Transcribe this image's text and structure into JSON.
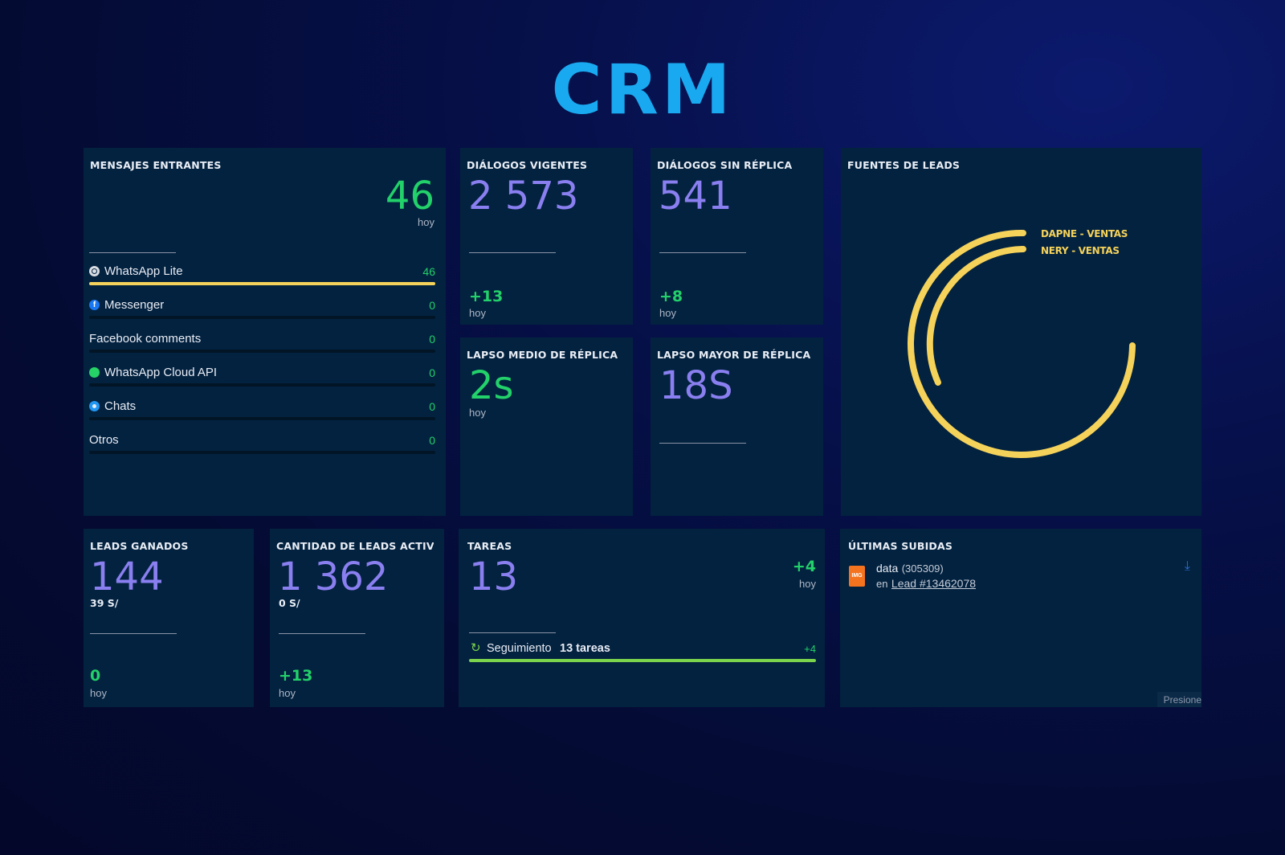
{
  "page": {
    "title": "CRM"
  },
  "incoming": {
    "title": "MENSAJES ENTRANTES",
    "value": "46",
    "value_caption": "hoy",
    "channels": [
      {
        "label": "WhatsApp Lite",
        "value": "46",
        "icon": "whatsapp-lite-icon",
        "share": 1.0
      },
      {
        "label": "Messenger",
        "value": "0",
        "icon": "messenger-icon",
        "share": 0
      },
      {
        "label": "Facebook comments",
        "value": "0",
        "icon": "",
        "share": 0
      },
      {
        "label": "WhatsApp Cloud API",
        "value": "0",
        "icon": "whatsapp-cloud-icon",
        "share": 0
      },
      {
        "label": "Chats",
        "value": "0",
        "icon": "chats-icon",
        "share": 0
      },
      {
        "label": "Otros",
        "value": "0",
        "icon": "",
        "share": 0
      }
    ]
  },
  "dialogs_active": {
    "title": "DIÁLOGOS VIGENTES",
    "value": "2 573",
    "delta": "+13",
    "delta_caption": "hoy"
  },
  "dialogs_no_reply": {
    "title": "DIÁLOGOS SIN RÉPLICA",
    "value": "541",
    "delta": "+8",
    "delta_caption": "hoy"
  },
  "avg_reply": {
    "title": "LAPSO MEDIO DE RÉPLICA",
    "value": "2s",
    "caption": "hoy"
  },
  "max_reply": {
    "title": "LAPSO MAYOR DE RÉPLICA",
    "value": "18S"
  },
  "lead_sources": {
    "title": "FUENTES DE LEADS",
    "legend": [
      "DAPNE - VENTAS",
      "NERY - VENTAS"
    ],
    "color": "#f5d25a"
  },
  "leads_won": {
    "title": "LEADS GANADOS",
    "value": "144",
    "sub": "39 S/",
    "delta": "0",
    "delta_caption": "hoy"
  },
  "leads_active": {
    "title": "CANTIDAD DE LEADS ACTIVOS",
    "value": "1 362",
    "sub": "0 S/",
    "delta": "+13",
    "delta_caption": "hoy"
  },
  "tasks": {
    "title": "TAREAS",
    "value": "13",
    "delta": "+4",
    "delta_caption": "hoy",
    "follow_label": "Seguimiento",
    "follow_count": "13 tareas",
    "follow_delta": "+4",
    "progress": 1.0
  },
  "uploads": {
    "title": "ÚLTIMAS SUBIDAS",
    "file_badge": "IMG",
    "file_name": "data",
    "file_size": "(305309)",
    "prefix": "en",
    "link": "Lead #13462078",
    "hint": "Presione"
  },
  "colors": {
    "accent": "#19a9f0",
    "purple": "#8a7ff0",
    "green": "#22d16a",
    "yellow": "#f5d25a",
    "card": "#03223f"
  }
}
